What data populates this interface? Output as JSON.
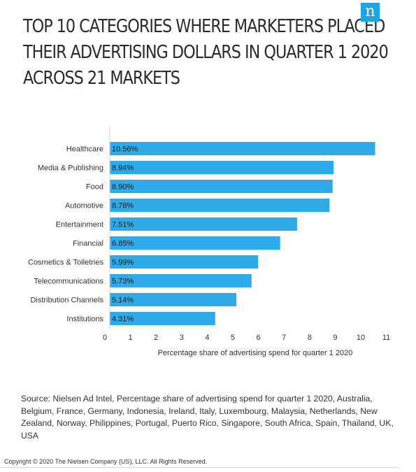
{
  "header": {
    "title_lines": [
      "TOP 10 CATEGORIES WHERE MARKETERS PLACED",
      "THEIR ADVERTISING DOLLARS IN QUARTER 1 2020",
      "ACROSS 21 MARKETS"
    ],
    "logo_letter": "n"
  },
  "chart_data": {
    "type": "bar",
    "orientation": "horizontal",
    "categories": [
      "Healthcare",
      "Media & Publishing",
      "Food",
      "Automotive",
      "Entertainment",
      "Financial",
      "Cosmetics & Toiletries",
      "Telecommunications",
      "Distribution Channels",
      "Institutions"
    ],
    "values": [
      10.56,
      8.94,
      8.9,
      8.78,
      7.51,
      6.85,
      5.99,
      5.73,
      5.14,
      4.31
    ],
    "value_labels": [
      "10.56%",
      "8.94%",
      "8.90%",
      "8.78%",
      "7.51%",
      "6.85%",
      "5.99%",
      "5.73%",
      "5.14%",
      "4.31%"
    ],
    "xlim": [
      0,
      11
    ],
    "x_ticks": [
      0,
      1,
      2,
      3,
      4,
      5,
      6,
      7,
      8,
      9,
      10,
      11
    ],
    "xlabel": "Percentage share of advertising spend for quarter 1 2020",
    "ylabel": "",
    "grid": false,
    "bar_color": "#2eaae8"
  },
  "footer": {
    "source": "Source: Nielsen Ad Intel, Percentage share of advertising spend for quarter 1 2020, Australia, Belgium, France, Germany, Indonesia, Ireland, Italy, Luxembourg, Malaysia, Netherlands, New Zealand, Norway, Philippines, Portugal, Puerto Rico, Singapore, South Africa, Spain, Thailand, UK, USA",
    "copyright": "Copyright © 2020 The Nielsen Company (US), LLC. All Rights Reserved."
  }
}
